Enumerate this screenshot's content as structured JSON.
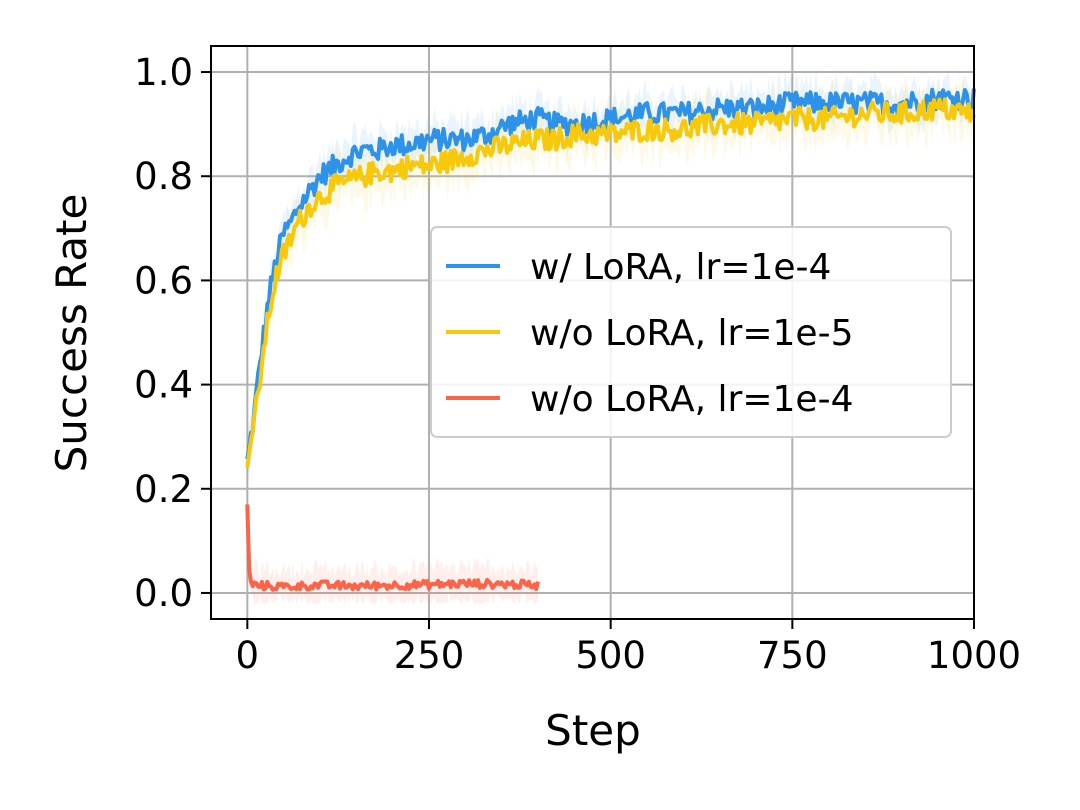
{
  "chart_data": {
    "type": "line",
    "title": "",
    "xlabel": "Step",
    "ylabel": "Success Rate",
    "xlim": [
      -50,
      1000
    ],
    "ylim": [
      -0.05,
      1.05
    ],
    "xticks": [
      0,
      250,
      500,
      750,
      1000
    ],
    "xtick_labels": [
      "0",
      "250",
      "500",
      "750",
      "1000"
    ],
    "yticks": [
      0.0,
      0.2,
      0.4,
      0.6,
      0.8,
      1.0
    ],
    "ytick_labels": [
      "0.0",
      "0.2",
      "0.4",
      "0.6",
      "0.8",
      "1.0"
    ],
    "grid": true,
    "legend_position": "center-right",
    "series": [
      {
        "name": "w/ LoRA, lr=1e-4",
        "color": "#2e93e8",
        "x": [
          0,
          10,
          20,
          30,
          40,
          50,
          60,
          70,
          80,
          90,
          100,
          120,
          140,
          160,
          180,
          200,
          220,
          250,
          280,
          300,
          330,
          360,
          400,
          420,
          450,
          500,
          550,
          600,
          650,
          700,
          750,
          800,
          850,
          900,
          950,
          1000
        ],
        "y": [
          0.25,
          0.35,
          0.47,
          0.57,
          0.64,
          0.69,
          0.71,
          0.74,
          0.76,
          0.78,
          0.8,
          0.82,
          0.84,
          0.85,
          0.85,
          0.86,
          0.86,
          0.87,
          0.87,
          0.87,
          0.88,
          0.9,
          0.91,
          0.9,
          0.9,
          0.91,
          0.92,
          0.92,
          0.93,
          0.93,
          0.94,
          0.94,
          0.94,
          0.94,
          0.95,
          0.95
        ]
      },
      {
        "name": "w/o LoRA, lr=1e-5",
        "color": "#f7c90c",
        "x": [
          0,
          10,
          20,
          30,
          40,
          50,
          60,
          70,
          80,
          90,
          100,
          120,
          140,
          160,
          180,
          200,
          220,
          250,
          280,
          300,
          330,
          360,
          400,
          420,
          450,
          500,
          550,
          600,
          650,
          700,
          750,
          800,
          850,
          900,
          950,
          1000
        ],
        "y": [
          0.26,
          0.33,
          0.44,
          0.54,
          0.61,
          0.65,
          0.68,
          0.71,
          0.73,
          0.75,
          0.76,
          0.78,
          0.79,
          0.8,
          0.81,
          0.81,
          0.82,
          0.82,
          0.83,
          0.84,
          0.85,
          0.86,
          0.87,
          0.87,
          0.88,
          0.88,
          0.89,
          0.89,
          0.9,
          0.9,
          0.91,
          0.91,
          0.92,
          0.92,
          0.93,
          0.92
        ]
      },
      {
        "name": "w/o LoRA, lr=1e-4",
        "color": "#fb6448",
        "x": [
          0,
          3,
          10,
          50,
          100,
          150,
          200,
          250,
          300,
          350,
          400
        ],
        "y": [
          0.17,
          0.02,
          0.015,
          0.012,
          0.015,
          0.013,
          0.015,
          0.016,
          0.018,
          0.017,
          0.015
        ]
      }
    ]
  }
}
